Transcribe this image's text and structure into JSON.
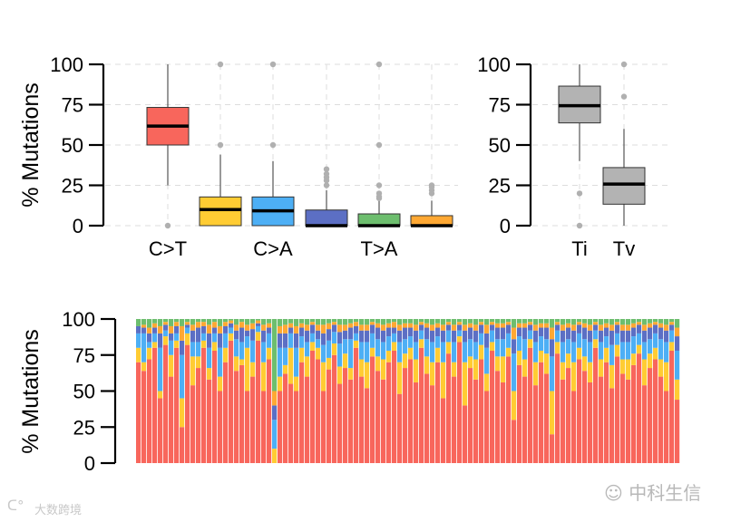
{
  "chart_data": [
    {
      "type": "box",
      "title": "",
      "ylabel": "% Mutations",
      "ylim": [
        0,
        100
      ],
      "yticks": [
        0,
        25,
        50,
        75,
        100
      ],
      "grid": true,
      "categories": [
        "C>T",
        "",
        "C>A",
        "",
        "T>A",
        ""
      ],
      "colors": [
        "#F8665C",
        "#FFCC33",
        "#4DAFF5",
        "#5C6FC4",
        "#6DBE6E",
        "#FFA833"
      ],
      "boxes": [
        {
          "q1": 50,
          "median": 61.7,
          "q3": 73.3,
          "whisker_low": 25,
          "whisker_high": 100,
          "outliers": [
            0
          ]
        },
        {
          "q1": 0,
          "median": 10,
          "q3": 17.8,
          "whisker_low": 0,
          "whisker_high": 44,
          "outliers": [
            50,
            100
          ]
        },
        {
          "q1": 0,
          "median": 9.2,
          "q3": 17.8,
          "whisker_low": 0,
          "whisker_high": 40,
          "outliers": [
            50,
            100
          ]
        },
        {
          "q1": 0,
          "median": 0,
          "q3": 9.7,
          "whisker_low": 0,
          "whisker_high": 22,
          "outliers": [
            25,
            28,
            30,
            32,
            35
          ]
        },
        {
          "q1": 0,
          "median": 0,
          "q3": 7.3,
          "whisker_low": 0,
          "whisker_high": 16,
          "outliers": [
            17,
            18,
            20,
            25,
            50,
            100
          ]
        },
        {
          "q1": 0,
          "median": 0,
          "q3": 6.2,
          "whisker_low": 0,
          "whisker_high": 15.5,
          "outliers": [
            20,
            22,
            24,
            25
          ]
        }
      ]
    },
    {
      "type": "box",
      "ylim": [
        0,
        100
      ],
      "yticks": [
        0,
        25,
        50,
        75,
        100
      ],
      "grid": true,
      "categories": [
        "Ti",
        "Tv"
      ],
      "colors": [
        "#B3B3B3",
        "#B3B3B3"
      ],
      "boxes": [
        {
          "q1": 63.7,
          "median": 74.4,
          "q3": 86.5,
          "whisker_low": 40,
          "whisker_high": 100,
          "outliers": [
            20,
            0
          ]
        },
        {
          "q1": 13.3,
          "median": 25.8,
          "q3": 36,
          "whisker_low": 0,
          "whisker_high": 60,
          "outliers": [
            80,
            100
          ]
        }
      ]
    },
    {
      "type": "stacked-bar",
      "ylabel": "% Mutations",
      "ylim": [
        0,
        100
      ],
      "yticks": [
        0,
        25,
        50,
        75,
        100
      ],
      "series_colors": [
        "#F8665C",
        "#FFCC33",
        "#4DAFF5",
        "#5C6FC4",
        "#FFA833",
        "#6DBE6E"
      ],
      "samples": [
        [
          70,
          10,
          10,
          5,
          0,
          5
        ],
        [
          64,
          6,
          20,
          4,
          2,
          4
        ],
        [
          72,
          8,
          4,
          6,
          4,
          6
        ],
        [
          80,
          4,
          6,
          4,
          3,
          3
        ],
        [
          45,
          5,
          30,
          10,
          5,
          5
        ],
        [
          82,
          6,
          4,
          4,
          2,
          2
        ],
        [
          60,
          15,
          10,
          5,
          5,
          5
        ],
        [
          80,
          5,
          5,
          5,
          3,
          2
        ],
        [
          25,
          20,
          30,
          10,
          10,
          5
        ],
        [
          82,
          8,
          4,
          2,
          2,
          2
        ],
        [
          54,
          20,
          10,
          8,
          4,
          4
        ],
        [
          66,
          8,
          10,
          10,
          4,
          2
        ],
        [
          80,
          5,
          5,
          5,
          3,
          2
        ],
        [
          58,
          8,
          14,
          10,
          6,
          4
        ],
        [
          78,
          6,
          6,
          4,
          4,
          2
        ],
        [
          50,
          10,
          20,
          10,
          5,
          5
        ],
        [
          70,
          10,
          10,
          5,
          3,
          2
        ],
        [
          85,
          5,
          4,
          3,
          2,
          1
        ],
        [
          64,
          10,
          12,
          6,
          4,
          4
        ],
        [
          68,
          4,
          12,
          10,
          4,
          2
        ],
        [
          50,
          30,
          8,
          4,
          4,
          4
        ],
        [
          60,
          10,
          15,
          8,
          4,
          3
        ],
        [
          85,
          6,
          4,
          2,
          2,
          1
        ],
        [
          50,
          20,
          14,
          8,
          4,
          4
        ],
        [
          72,
          8,
          10,
          4,
          3,
          3
        ],
        [
          0,
          10,
          20,
          10,
          10,
          50
        ],
        [
          50,
          10,
          20,
          10,
          5,
          5
        ],
        [
          62,
          6,
          12,
          10,
          6,
          4
        ],
        [
          55,
          25,
          10,
          4,
          3,
          3
        ],
        [
          50,
          10,
          20,
          10,
          5,
          5
        ],
        [
          70,
          10,
          8,
          6,
          3,
          3
        ],
        [
          60,
          14,
          10,
          8,
          4,
          4
        ],
        [
          78,
          6,
          6,
          6,
          2,
          2
        ],
        [
          72,
          8,
          6,
          6,
          4,
          4
        ],
        [
          50,
          20,
          12,
          8,
          6,
          4
        ],
        [
          65,
          8,
          12,
          8,
          4,
          3
        ],
        [
          75,
          8,
          8,
          5,
          2,
          2
        ],
        [
          55,
          12,
          16,
          8,
          5,
          4
        ],
        [
          66,
          10,
          10,
          6,
          4,
          4
        ],
        [
          58,
          8,
          20,
          8,
          3,
          3
        ],
        [
          80,
          5,
          5,
          5,
          3,
          2
        ],
        [
          60,
          12,
          12,
          8,
          4,
          4
        ],
        [
          52,
          18,
          14,
          8,
          4,
          4
        ],
        [
          74,
          6,
          10,
          6,
          2,
          2
        ],
        [
          64,
          10,
          12,
          8,
          3,
          3
        ],
        [
          58,
          14,
          12,
          8,
          4,
          4
        ],
        [
          70,
          8,
          10,
          6,
          3,
          3
        ],
        [
          78,
          6,
          6,
          4,
          4,
          2
        ],
        [
          48,
          22,
          14,
          8,
          4,
          4
        ],
        [
          66,
          10,
          10,
          8,
          3,
          3
        ],
        [
          72,
          8,
          8,
          6,
          3,
          3
        ],
        [
          56,
          16,
          12,
          8,
          4,
          4
        ],
        [
          80,
          6,
          6,
          4,
          2,
          2
        ],
        [
          62,
          12,
          12,
          8,
          3,
          3
        ],
        [
          54,
          16,
          14,
          8,
          4,
          4
        ],
        [
          70,
          10,
          8,
          6,
          3,
          3
        ],
        [
          45,
          25,
          14,
          8,
          4,
          4
        ],
        [
          76,
          8,
          8,
          4,
          2,
          2
        ],
        [
          60,
          10,
          14,
          8,
          4,
          4
        ],
        [
          84,
          4,
          4,
          4,
          2,
          2
        ],
        [
          40,
          30,
          14,
          8,
          4,
          4
        ],
        [
          66,
          8,
          12,
          8,
          3,
          3
        ],
        [
          58,
          14,
          12,
          8,
          4,
          4
        ],
        [
          72,
          10,
          8,
          6,
          2,
          2
        ],
        [
          50,
          12,
          18,
          10,
          6,
          4
        ],
        [
          78,
          6,
          8,
          4,
          2,
          2
        ],
        [
          64,
          10,
          12,
          8,
          3,
          3
        ],
        [
          56,
          18,
          12,
          8,
          3,
          3
        ],
        [
          74,
          6,
          10,
          6,
          2,
          2
        ],
        [
          30,
          20,
          26,
          10,
          8,
          6
        ],
        [
          68,
          10,
          10,
          6,
          3,
          3
        ],
        [
          60,
          12,
          14,
          8,
          3,
          3
        ],
        [
          80,
          6,
          6,
          4,
          2,
          2
        ],
        [
          54,
          16,
          14,
          8,
          4,
          4
        ],
        [
          70,
          8,
          10,
          6,
          3,
          3
        ],
        [
          62,
          14,
          10,
          8,
          3,
          3
        ],
        [
          20,
          30,
          24,
          12,
          8,
          6
        ],
        [
          76,
          8,
          8,
          4,
          2,
          2
        ],
        [
          58,
          12,
          14,
          8,
          4,
          4
        ],
        [
          66,
          10,
          10,
          8,
          3,
          3
        ],
        [
          50,
          20,
          14,
          8,
          4,
          4
        ],
        [
          72,
          8,
          10,
          6,
          2,
          2
        ],
        [
          64,
          10,
          12,
          8,
          3,
          3
        ],
        [
          56,
          14,
          14,
          8,
          4,
          4
        ],
        [
          80,
          6,
          6,
          4,
          2,
          2
        ],
        [
          60,
          12,
          12,
          8,
          4,
          4
        ],
        [
          70,
          10,
          8,
          6,
          3,
          3
        ],
        [
          52,
          16,
          14,
          10,
          4,
          4
        ],
        [
          74,
          8,
          8,
          6,
          2,
          2
        ],
        [
          62,
          10,
          12,
          8,
          4,
          4
        ],
        [
          58,
          14,
          12,
          8,
          4,
          4
        ],
        [
          68,
          8,
          12,
          6,
          3,
          3
        ],
        [
          76,
          6,
          8,
          6,
          2,
          2
        ],
        [
          54,
          18,
          12,
          8,
          4,
          4
        ],
        [
          66,
          10,
          10,
          8,
          3,
          3
        ],
        [
          72,
          8,
          10,
          6,
          2,
          2
        ],
        [
          60,
          12,
          14,
          8,
          3,
          3
        ],
        [
          50,
          20,
          14,
          8,
          4,
          4
        ],
        [
          78,
          6,
          8,
          4,
          2,
          2
        ],
        [
          44,
          14,
          20,
          10,
          6,
          6
        ]
      ]
    }
  ],
  "watermarks": {
    "left": "大数跨境",
    "right": "中科生信"
  }
}
